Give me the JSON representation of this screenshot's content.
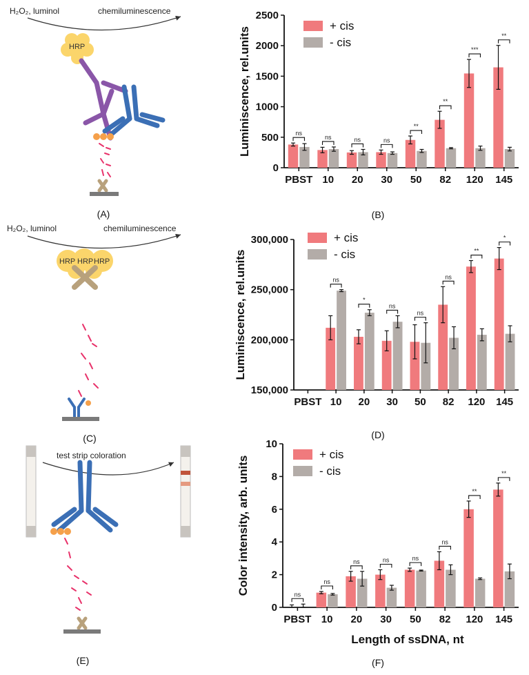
{
  "colors": {
    "plus_cis": "#f07a7d",
    "minus_cis": "#b3aca8",
    "antibody_blue": "#3b6fb5",
    "antibody_purple": "#8a56a8",
    "hrp_yellow": "#fbd56b",
    "tag_orange": "#f5a04a",
    "dna_pink": "#e8336b",
    "base_gray": "#7a7a7a",
    "anchor_tan": "#b8a17c"
  },
  "diagrams": {
    "A": {
      "label": "(A)",
      "reagent": "H₂O₂, luminol",
      "output": "chemiluminescence",
      "hrp": "HRP"
    },
    "C": {
      "label": "(C)",
      "reagent": "H₂O₂, luminol",
      "output": "chemiluminescence",
      "hrp": [
        "HRP",
        "HRP",
        "HRP"
      ]
    },
    "E": {
      "label": "(E)",
      "process": "test strip coloration"
    }
  },
  "chart_data": [
    {
      "panel": "(B)",
      "type": "bar",
      "ylabel": "Luminiscence, rel.units",
      "xlabel": "",
      "categories": [
        "PBST",
        "10",
        "20",
        "30",
        "50",
        "82",
        "120",
        "145"
      ],
      "ylim": [
        0,
        2500
      ],
      "yticks": [
        "0",
        "500",
        "1000",
        "1500",
        "2000",
        "2500"
      ],
      "ytick_values": [
        0,
        500,
        1000,
        1500,
        2000,
        2500
      ],
      "series": [
        {
          "name": "+ cis",
          "values": [
            380,
            290,
            250,
            255,
            455,
            785,
            1545,
            1645
          ],
          "errors": [
            25,
            45,
            30,
            35,
            65,
            140,
            230,
            360
          ]
        },
        {
          "name": "- cis",
          "values": [
            340,
            305,
            255,
            240,
            275,
            320,
            320,
            305
          ],
          "errors": [
            55,
            35,
            45,
            20,
            25,
            10,
            35,
            30
          ]
        }
      ],
      "significance": [
        "ns",
        "ns",
        "ns",
        "ns",
        "**",
        "**",
        "***",
        "**"
      ]
    },
    {
      "panel": "(D)",
      "type": "bar",
      "ylabel": "Luminiscence, rel.units",
      "xlabel": "",
      "categories": [
        "PBST",
        "10",
        "20",
        "30",
        "50",
        "82",
        "120",
        "145"
      ],
      "ylim": [
        150000,
        300000
      ],
      "yticks": [
        "150,000",
        "200,000",
        "250,000",
        "300,000"
      ],
      "ytick_values": [
        150000,
        200000,
        250000,
        300000
      ],
      "series": [
        {
          "name": "+ cis",
          "values": [
            null,
            212000,
            203000,
            199000,
            198000,
            235000,
            273000,
            281000
          ],
          "errors": [
            0,
            12000,
            7000,
            10000,
            17000,
            18000,
            6000,
            11000
          ]
        },
        {
          "name": "- cis",
          "values": [
            null,
            249000,
            227000,
            218000,
            197000,
            202000,
            205000,
            206000
          ],
          "errors": [
            0,
            1000,
            3000,
            6000,
            20000,
            11000,
            6000,
            8000
          ]
        }
      ],
      "significance": [
        null,
        "ns",
        "*",
        "ns",
        "ns",
        "ns",
        "**",
        "*"
      ]
    },
    {
      "panel": "(F)",
      "type": "bar",
      "ylabel": "Color intensity, arb. units",
      "xlabel": "Length of ssDNA, nt",
      "categories": [
        "PBST",
        "10",
        "20",
        "30",
        "50",
        "82",
        "120",
        "145"
      ],
      "ylim": [
        0,
        10
      ],
      "yticks": [
        "0",
        "2",
        "4",
        "6",
        "8",
        "10"
      ],
      "ytick_values": [
        0,
        2,
        4,
        6,
        8,
        10
      ],
      "series": [
        {
          "name": "+ cis",
          "values": [
            0.0,
            0.9,
            1.9,
            2.0,
            2.3,
            2.85,
            6.0,
            7.2
          ],
          "errors": [
            0.15,
            0.07,
            0.3,
            0.3,
            0.1,
            0.55,
            0.5,
            0.4
          ]
        },
        {
          "name": "- cis",
          "values": [
            0.0,
            0.8,
            1.75,
            1.2,
            2.25,
            2.3,
            1.75,
            2.2
          ],
          "errors": [
            0.2,
            0.05,
            0.45,
            0.15,
            0.03,
            0.3,
            0.05,
            0.45
          ]
        }
      ],
      "significance": [
        "ns",
        "ns",
        "ns",
        "ns",
        "ns",
        "ns",
        "**",
        "**"
      ]
    }
  ]
}
